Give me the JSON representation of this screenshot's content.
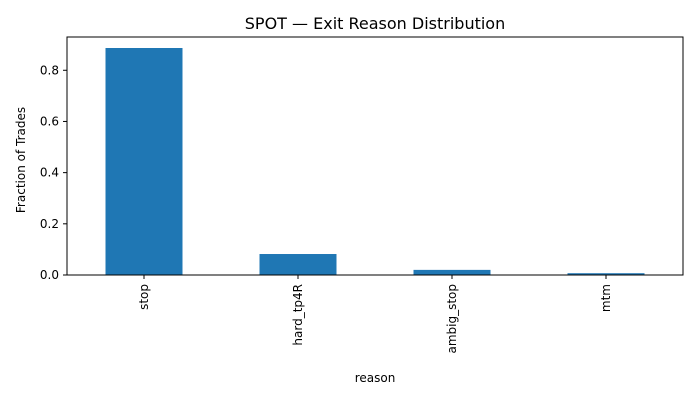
{
  "chart_data": {
    "type": "bar",
    "title": "SPOT — Exit Reason Distribution",
    "xlabel": "reason",
    "ylabel": "Fraction of Trades",
    "categories": [
      "stop",
      "hard_tp4R",
      "ambig_stop",
      "mtm"
    ],
    "values": [
      0.887,
      0.082,
      0.02,
      0.007
    ],
    "ylim": [
      0,
      0.93
    ],
    "yticks": [
      "0.0",
      "0.2",
      "0.4",
      "0.6",
      "0.8"
    ],
    "grid": false,
    "legend": "none",
    "bar_color": "#1f77b4"
  }
}
